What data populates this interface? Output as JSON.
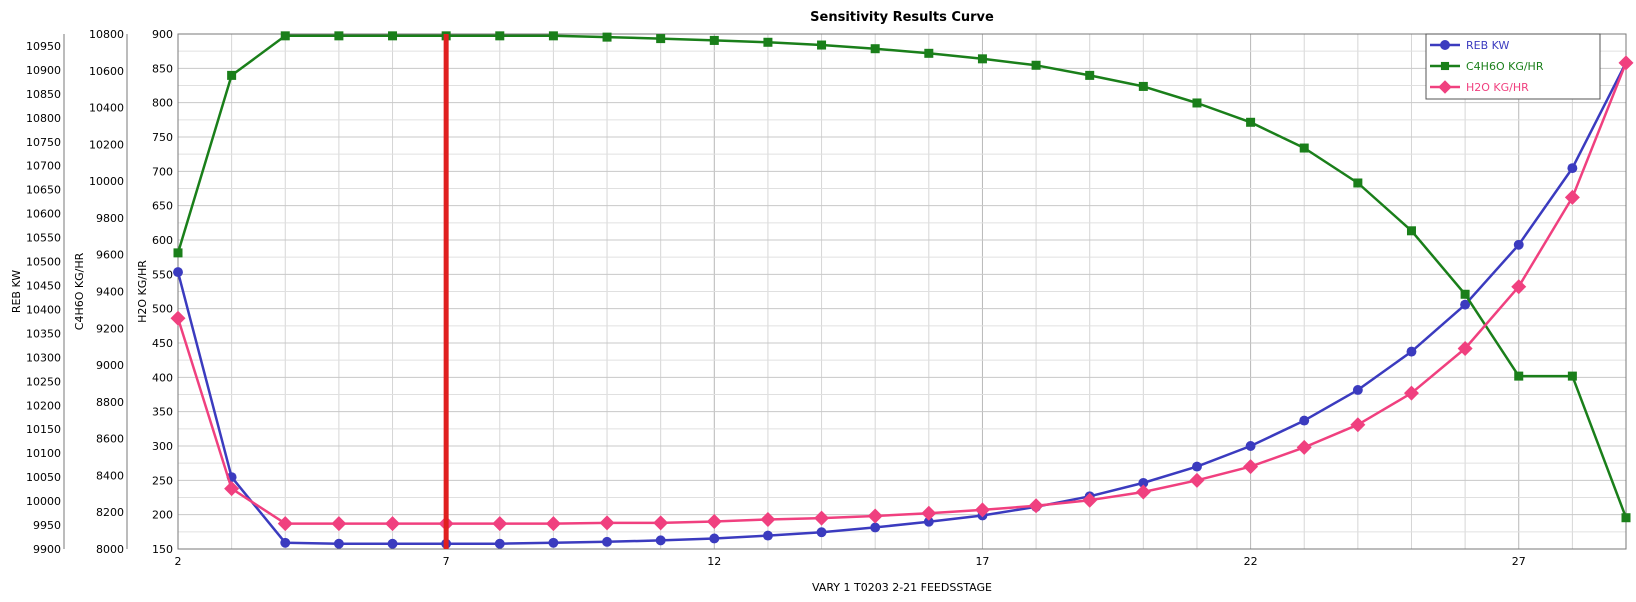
{
  "chart_data": {
    "type": "line",
    "title": "Sensitivity Results Curve",
    "xlabel": "VARY   1 T0203 2-21 FEEDSSTAGE",
    "xlim": [
      2,
      29
    ],
    "xticks": [
      2,
      7,
      12,
      17,
      22,
      27
    ],
    "x": [
      2,
      3,
      4,
      5,
      6,
      7,
      8,
      9,
      10,
      11,
      12,
      13,
      14,
      15,
      16,
      17,
      18,
      19,
      20,
      21,
      22,
      23,
      24,
      25,
      26,
      27,
      28,
      29
    ],
    "grid": true,
    "legend_position": "top-right",
    "axes": [
      {
        "id": "reb",
        "label": "REB KW",
        "ylim": [
          9900,
          10975
        ],
        "ticks": [
          9900,
          9950,
          10000,
          10050,
          10100,
          10150,
          10200,
          10250,
          10300,
          10350,
          10400,
          10450,
          10500,
          10550,
          10600,
          10650,
          10700,
          10750,
          10800,
          10850,
          10900,
          10950
        ]
      },
      {
        "id": "c4h6o",
        "label": "C4H6O KG/HR",
        "ylim": [
          8000,
          10800
        ],
        "ticks": [
          8000,
          8200,
          8400,
          8600,
          8800,
          9000,
          9200,
          9400,
          9600,
          9800,
          10000,
          10200,
          10400,
          10600,
          10800
        ]
      },
      {
        "id": "h2o",
        "label": "H2O KG/HR",
        "ylim": [
          150,
          900
        ],
        "ticks": [
          150,
          200,
          250,
          300,
          350,
          400,
          450,
          500,
          550,
          600,
          650,
          700,
          750,
          800,
          850,
          900
        ]
      }
    ],
    "series": [
      {
        "name": "REB KW",
        "axis": "reb",
        "color": "#3b3bbf",
        "marker": "circle",
        "values": [
          10478,
          10050,
          9913,
          9911,
          9911,
          9911,
          9911,
          9913,
          9915,
          9918,
          9922,
          9928,
          9935,
          9945,
          9957,
          9970,
          9988,
          10010,
          10038,
          10072,
          10115,
          10168,
          10232,
          10312,
          10410,
          10535,
          10695,
          10915
        ]
      },
      {
        "name": "C4H6O KG/HR",
        "axis": "c4h6o",
        "color": "#1a7f1a",
        "marker": "square",
        "values": [
          9610,
          10575,
          10790,
          10790,
          10790,
          10790,
          10790,
          10790,
          10783,
          10775,
          10765,
          10755,
          10740,
          10720,
          10695,
          10665,
          10630,
          10575,
          10515,
          10425,
          10320,
          10180,
          9990,
          9730,
          9385,
          8940,
          8940,
          8170
        ]
      },
      {
        "name": "H2O KG/HR",
        "axis": "h2o",
        "color": "#f0407f",
        "marker": "diamond",
        "values": [
          486,
          238,
          187,
          187,
          187,
          187,
          187,
          187,
          188,
          188,
          190,
          193,
          195,
          198,
          202,
          207,
          213,
          221,
          233,
          250,
          270,
          298,
          331,
          377,
          442,
          532,
          662,
          858
        ]
      }
    ],
    "marker_line": {
      "x": 7,
      "color": "#e02020"
    }
  }
}
